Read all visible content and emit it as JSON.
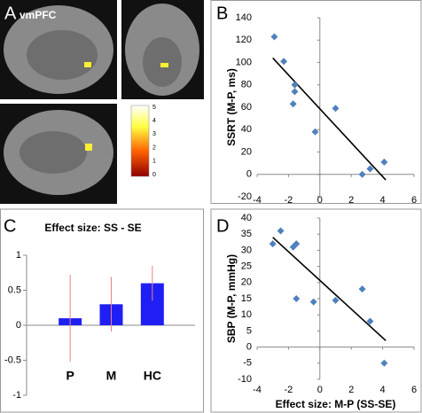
{
  "figure": {
    "panel_labels": [
      "A",
      "B",
      "C",
      "D"
    ],
    "region_label": "vmPFC",
    "colorbar_ticks": [
      0,
      1,
      2,
      3,
      4,
      5
    ]
  },
  "chart_data": [
    {
      "type": "scatter",
      "ylabel": "SSRT (M-P, ms)",
      "color": "#4f81bd",
      "x": [
        -2.9,
        -2.3,
        -1.6,
        -1.6,
        -1.7,
        -0.3,
        1.0,
        2.7,
        3.2,
        4.1
      ],
      "values": [
        123,
        101,
        80,
        74,
        63,
        38,
        59,
        0,
        5,
        11
      ],
      "fit_line": {
        "x": [
          -3,
          4.2
        ],
        "y": [
          104,
          -5
        ]
      },
      "xlim": [
        -4,
        6
      ],
      "xticks": [
        -4,
        -2,
        0,
        2,
        4,
        6
      ],
      "ylim": [
        -20,
        140
      ],
      "yticks": [
        -20,
        0,
        20,
        40,
        60,
        80,
        100,
        120,
        140
      ]
    },
    {
      "type": "bar",
      "title": "Effect size: SS - SE",
      "color": "#1f1ff5",
      "error_color": "#f08080",
      "categories": [
        "P",
        "M",
        "HC"
      ],
      "values": [
        0.1,
        0.3,
        0.6
      ],
      "errors": [
        0.62,
        0.39,
        0.25
      ],
      "ylim": [
        -1,
        1
      ],
      "yticks": [
        -1,
        -0.5,
        0,
        0.5,
        1
      ]
    },
    {
      "type": "scatter",
      "xlabel": "Effect size: M-P (SS-SE)",
      "ylabel": "SBP (M-P, mmHg)",
      "color": "#4f81bd",
      "x": [
        -3.0,
        -2.5,
        -1.7,
        -1.5,
        -1.5,
        -0.4,
        1.0,
        2.7,
        3.2,
        4.1
      ],
      "values": [
        32,
        36,
        31,
        32,
        15,
        14,
        14.5,
        18,
        8,
        -5
      ],
      "fit_line": {
        "x": [
          -3,
          4.2
        ],
        "y": [
          34,
          2
        ]
      },
      "xlim": [
        -4,
        6
      ],
      "xticks": [
        -4,
        -2,
        0,
        2,
        4,
        6
      ],
      "ylim": [
        -10,
        40
      ],
      "yticks": [
        -10,
        -5,
        0,
        5,
        10,
        15,
        20,
        25,
        30,
        35,
        40
      ]
    }
  ]
}
